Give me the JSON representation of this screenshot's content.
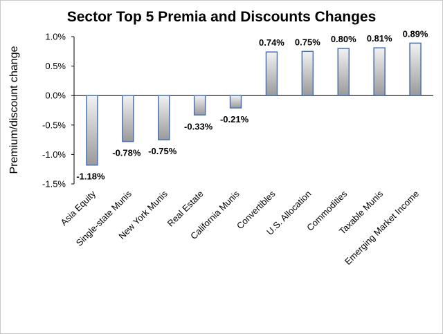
{
  "chart_data": {
    "type": "bar",
    "title": "Sector Top 5 Premia and Discounts Changes",
    "xlabel": "",
    "ylabel": "Premium/discount change",
    "ylim": [
      -1.5,
      1.0
    ],
    "yticks": [
      1.0,
      0.5,
      0.0,
      -0.5,
      -1.0,
      -1.5
    ],
    "ytick_labels": [
      "1.0%",
      "0.5%",
      "0.0%",
      "-0.5%",
      "-1.0%",
      "-1.5%"
    ],
    "categories": [
      "Asia Equity",
      "Single-state Munis",
      "New York Munis",
      "Real Estate",
      "California Munis",
      "Convertibles",
      "U.S. Allocation",
      "Commodities",
      "Taxable Munis",
      "Emerging Market Income"
    ],
    "values": [
      -1.18,
      -0.78,
      -0.75,
      -0.33,
      -0.21,
      0.74,
      0.75,
      0.8,
      0.81,
      0.89
    ],
    "data_labels": [
      "-1.18%",
      "-0.78%",
      "-0.75%",
      "-0.33%",
      "-0.21%",
      "0.74%",
      "0.75%",
      "0.80%",
      "0.81%",
      "0.89%"
    ],
    "grid": false,
    "legend": "none",
    "colors": {
      "bar_border": "#4a72b8",
      "bar_fill_light": "#f2f2f2",
      "bar_fill_dark": "#9a9a9a",
      "axis": "#000000",
      "frame": "#c9c9c9"
    }
  }
}
